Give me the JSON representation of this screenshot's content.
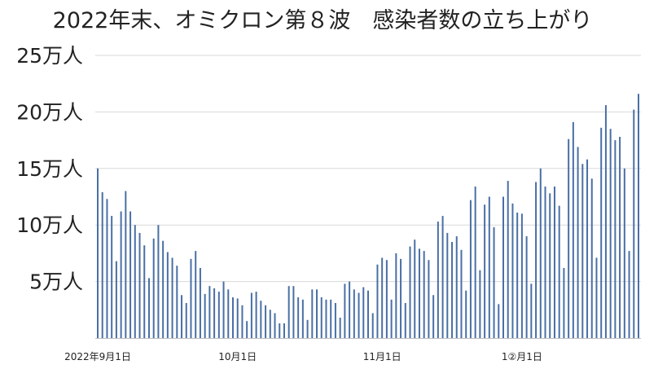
{
  "chart_data": {
    "type": "bar",
    "title": "2022年末、オミクロン第８波　感染者数の立ち上がり",
    "xlabel": "",
    "ylabel": "",
    "ylim": [
      0,
      250000
    ],
    "y_ticks": [
      {
        "value": 50000,
        "label": "5万人"
      },
      {
        "value": 100000,
        "label": "10万人"
      },
      {
        "value": 150000,
        "label": "15万人"
      },
      {
        "value": 200000,
        "label": "20万人"
      },
      {
        "value": 250000,
        "label": "25万人"
      }
    ],
    "x_ticks": [
      {
        "index": 0,
        "label": "2022年9月1日"
      },
      {
        "index": 30,
        "label": "10月1日"
      },
      {
        "index": 61,
        "label": "11月1日"
      },
      {
        "index": 91,
        "label": "1②月1日"
      }
    ],
    "grid": true,
    "bar_color": "#4a6fa5",
    "start_date": "2022-09-01",
    "values": [
      150000,
      129000,
      123000,
      108000,
      68000,
      112000,
      130000,
      112000,
      100000,
      93000,
      82000,
      53000,
      88000,
      100000,
      86000,
      76000,
      71000,
      64000,
      38000,
      31000,
      70000,
      77000,
      62000,
      39000,
      46000,
      44000,
      41000,
      50000,
      43000,
      36000,
      35000,
      29000,
      15000,
      40000,
      41000,
      33000,
      29000,
      25000,
      22000,
      13000,
      13000,
      46000,
      46000,
      36000,
      34000,
      16000,
      43000,
      43000,
      36000,
      34000,
      34000,
      31000,
      18000,
      48000,
      50000,
      43000,
      40000,
      45000,
      42000,
      22000,
      65000,
      71000,
      69000,
      34000,
      75000,
      70000,
      31000,
      81000,
      87000,
      79000,
      77000,
      69000,
      38000,
      103000,
      108000,
      93000,
      85000,
      90000,
      78000,
      42000,
      122000,
      134000,
      60000,
      118000,
      125000,
      98000,
      30000,
      125000,
      139000,
      119000,
      111000,
      110000,
      90000,
      48000,
      138000,
      150000,
      134000,
      128000,
      134000,
      117000,
      62000,
      176000,
      191000,
      169000,
      154000,
      158000,
      141000,
      71000,
      186000,
      206000,
      185000,
      175000,
      178000,
      150000,
      77000,
      202000,
      216000
    ]
  }
}
